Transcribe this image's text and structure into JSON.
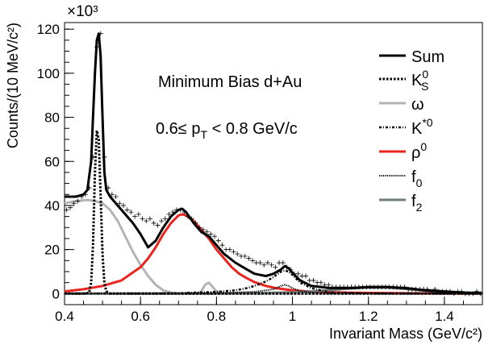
{
  "chart_data": {
    "type": "line",
    "title": "Minimum Bias d+Au",
    "subtitle": "0.6≤ p_T < 0.8 GeV/c",
    "subtitle_parts": {
      "pre": "0.6≤ p",
      "sub": "T",
      "post": " < 0.8 GeV/c"
    },
    "xlabel": "Invariant Mass (GeV/c²)",
    "ylabel": "Counts/(10 MeV/c²)",
    "y_multiplier": "×10³",
    "xlim": [
      0.4,
      1.5
    ],
    "ylim": [
      -5,
      123
    ],
    "x_ticks": [
      0.4,
      0.6,
      0.8,
      1.0,
      1.2,
      1.4
    ],
    "x_tick_labels": [
      "0.4",
      "0.6",
      "0.8",
      "1",
      "1.2",
      "1.4"
    ],
    "y_ticks": [
      0,
      20,
      40,
      60,
      80,
      100,
      120
    ],
    "y_tick_labels": [
      "0",
      "20",
      "40",
      "60",
      "80",
      "100",
      "120"
    ],
    "grid": false,
    "legend_position": "right",
    "series": [
      {
        "name": "Sum",
        "legend_main": "Sum",
        "legend_sub": "",
        "legend_sup": "",
        "color": "#000000",
        "style": "solid",
        "width": 3,
        "x": [
          0.4,
          0.43,
          0.45,
          0.46,
          0.47,
          0.475,
          0.48,
          0.485,
          0.49,
          0.495,
          0.5,
          0.505,
          0.51,
          0.52,
          0.54,
          0.56,
          0.58,
          0.6,
          0.62,
          0.64,
          0.66,
          0.68,
          0.7,
          0.71,
          0.72,
          0.74,
          0.76,
          0.77,
          0.78,
          0.8,
          0.82,
          0.85,
          0.88,
          0.9,
          0.93,
          0.95,
          0.97,
          0.98,
          0.99,
          1.0,
          1.02,
          1.05,
          1.1,
          1.15,
          1.2,
          1.25,
          1.3,
          1.35,
          1.4,
          1.45,
          1.5
        ],
        "y": [
          44,
          44,
          45,
          47,
          60,
          80,
          100,
          115,
          118,
          108,
          80,
          55,
          47,
          44,
          40,
          36,
          32,
          27,
          21,
          24,
          30,
          35,
          38,
          38.5,
          37,
          32,
          28,
          27,
          26,
          22,
          18,
          14,
          11,
          9,
          8,
          9,
          11,
          12.5,
          11.5,
          9.5,
          6,
          3.5,
          2.5,
          2.5,
          3,
          3,
          2.5,
          1.5,
          1,
          0.5,
          0.2
        ]
      },
      {
        "name": "KS0",
        "legend_main": "K",
        "legend_sub": "S",
        "legend_sup": "0",
        "color": "#000000",
        "style": "dotted",
        "width": 3,
        "x": [
          0.4,
          0.455,
          0.465,
          0.47,
          0.475,
          0.48,
          0.485,
          0.49,
          0.495,
          0.5,
          0.505,
          0.51,
          0.52,
          0.55,
          1.5
        ],
        "y": [
          0,
          0,
          0.5,
          5,
          22,
          55,
          74,
          70,
          45,
          18,
          5,
          1,
          0,
          0,
          0
        ]
      },
      {
        "name": "omega",
        "legend_main": "ω",
        "legend_sub": "",
        "legend_sup": "",
        "color": "#b4b4b4",
        "style": "solid",
        "width": 3,
        "x": [
          0.4,
          0.43,
          0.46,
          0.48,
          0.5,
          0.52,
          0.54,
          0.56,
          0.58,
          0.6,
          0.62,
          0.64,
          0.66,
          0.68,
          0.7,
          0.72,
          0.75,
          0.76,
          0.77,
          0.78,
          0.79,
          0.8,
          0.82,
          1.5
        ],
        "y": [
          41,
          42,
          42.5,
          42,
          41,
          38,
          33,
          26,
          19,
          13,
          8,
          4,
          1.5,
          0.5,
          0,
          0,
          0,
          1,
          4,
          5,
          3,
          1,
          0,
          0
        ]
      },
      {
        "name": "K*0",
        "legend_main": "K",
        "legend_sub": "",
        "legend_sup": "*0",
        "color": "#000000",
        "style": "dashdot",
        "width": 2.5,
        "x": [
          0.4,
          0.6,
          0.7,
          0.8,
          0.85,
          0.88,
          0.9,
          0.93,
          0.95,
          0.97,
          0.98,
          0.99,
          1.0,
          1.02,
          1.05,
          1.08,
          1.1,
          1.2,
          1.5
        ],
        "y": [
          0,
          0,
          0.2,
          0.8,
          1.5,
          2.5,
          3.5,
          5.5,
          7.5,
          10,
          10.5,
          10,
          8.5,
          5,
          2.5,
          1.2,
          0.6,
          0.1,
          0
        ]
      },
      {
        "name": "rho0",
        "legend_main": "ρ",
        "legend_sub": "",
        "legend_sup": "0",
        "color": "#e8251f",
        "style": "solid",
        "width": 3,
        "x": [
          0.4,
          0.45,
          0.5,
          0.55,
          0.6,
          0.62,
          0.64,
          0.66,
          0.68,
          0.7,
          0.71,
          0.72,
          0.74,
          0.76,
          0.78,
          0.8,
          0.82,
          0.84,
          0.86,
          0.88,
          0.9,
          0.93,
          0.96,
          1.0,
          1.05,
          1.1,
          1.2,
          1.3,
          1.4,
          1.5
        ],
        "y": [
          1,
          2,
          3.5,
          6,
          12,
          16,
          21,
          27,
          32,
          35.5,
          36,
          35.5,
          33,
          29,
          25,
          20,
          16,
          12,
          9,
          7,
          5.2,
          3.5,
          2.4,
          1.5,
          0.9,
          0.6,
          0.3,
          0.15,
          0.1,
          0.05
        ]
      },
      {
        "name": "f0",
        "legend_main": "f",
        "legend_sub": "0",
        "legend_sup": "",
        "color": "#000000",
        "style": "finedot",
        "width": 2,
        "x": [
          0.4,
          0.6,
          0.8,
          0.9,
          0.95,
          0.97,
          0.98,
          0.99,
          1.0,
          1.02,
          1.05,
          1.1,
          1.5
        ],
        "y": [
          0,
          0,
          0.2,
          0.8,
          2,
          3.5,
          4,
          3.5,
          2.5,
          1.2,
          0.5,
          0.1,
          0
        ]
      },
      {
        "name": "f2",
        "legend_main": "f",
        "legend_sub": "2",
        "legend_sup": "",
        "color": "#707b7b",
        "style": "solid",
        "width": 3,
        "x": [
          0.4,
          0.8,
          0.9,
          1.0,
          1.05,
          1.1,
          1.15,
          1.2,
          1.25,
          1.3,
          1.35,
          1.4,
          1.45,
          1.5
        ],
        "y": [
          0,
          0,
          0.2,
          0.6,
          1,
          1.6,
          2.3,
          2.8,
          2.7,
          2.1,
          1.3,
          0.7,
          0.3,
          0.1
        ]
      }
    ],
    "data_points": {
      "name": "data",
      "x": [
        0.405,
        0.415,
        0.425,
        0.435,
        0.445,
        0.455,
        0.465,
        0.475,
        0.485,
        0.495,
        0.505,
        0.515,
        0.525,
        0.535,
        0.545,
        0.555,
        0.565,
        0.575,
        0.585,
        0.595,
        0.605,
        0.615,
        0.625,
        0.635,
        0.645,
        0.655,
        0.665,
        0.675,
        0.685,
        0.695,
        0.705,
        0.715,
        0.725,
        0.735,
        0.745,
        0.755,
        0.765,
        0.775,
        0.785,
        0.795,
        0.805,
        0.815,
        0.825,
        0.835,
        0.845,
        0.855,
        0.865,
        0.875,
        0.885,
        0.895,
        0.905,
        0.915,
        0.925,
        0.935,
        0.945,
        0.955,
        0.965,
        0.975,
        0.985,
        0.995,
        1.005,
        1.015,
        1.025,
        1.035,
        1.045,
        1.055,
        1.065,
        1.075,
        1.085,
        1.095,
        1.105,
        1.115,
        1.125,
        1.135,
        1.145,
        1.155,
        1.165,
        1.175,
        1.185,
        1.195,
        1.205,
        1.215,
        1.225,
        1.235,
        1.245,
        1.255,
        1.265,
        1.275,
        1.285,
        1.295,
        1.305,
        1.315,
        1.325,
        1.335,
        1.345,
        1.355,
        1.365,
        1.375,
        1.385,
        1.395,
        1.405,
        1.415,
        1.425,
        1.435,
        1.445,
        1.455,
        1.465,
        1.475,
        1.485,
        1.495
      ],
      "y": [
        38,
        39,
        41,
        42,
        44,
        45,
        48,
        62,
        112,
        118,
        62,
        48,
        45,
        44,
        41,
        40,
        38,
        37,
        35,
        36,
        34,
        33,
        34,
        32,
        31,
        33,
        34,
        36,
        37,
        38,
        38,
        37,
        35,
        34,
        32,
        30,
        29,
        28,
        27,
        26,
        24,
        22,
        20,
        20,
        19,
        18,
        17,
        17,
        16,
        15,
        14,
        14,
        13,
        14,
        13,
        12,
        14,
        14,
        12,
        11,
        9,
        9,
        8,
        8,
        6,
        6,
        5,
        5,
        4,
        4,
        3,
        3,
        3,
        3,
        3,
        3,
        3,
        3,
        3,
        3,
        3,
        3,
        3,
        3,
        3,
        3,
        3,
        3,
        3,
        3,
        2,
        2,
        2,
        2,
        2,
        2,
        1,
        2,
        1,
        1,
        1,
        1,
        0,
        1,
        1,
        0,
        0,
        0,
        1,
        0
      ]
    }
  }
}
